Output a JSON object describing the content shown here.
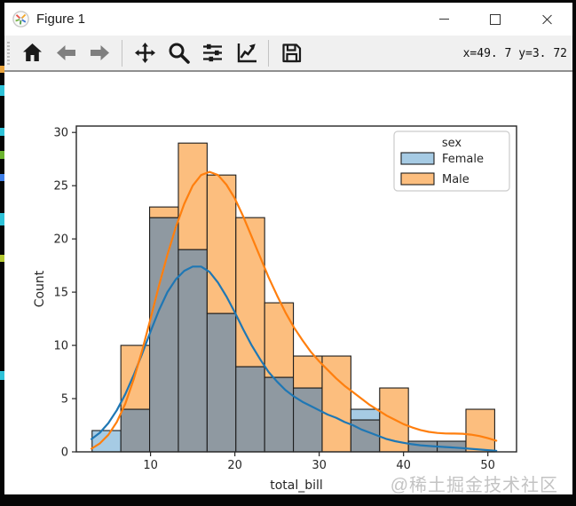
{
  "window": {
    "title": "Figure 1",
    "controls": [
      {
        "name": "minimize"
      },
      {
        "name": "maximize"
      },
      {
        "name": "close"
      }
    ]
  },
  "toolbar": {
    "groups": [
      [
        "home",
        "back",
        "forward"
      ],
      [
        "pan",
        "zoom",
        "configure-subplots",
        "edit-parameters"
      ],
      [
        "save"
      ]
    ],
    "coordinates": "x=49. 7 y=3. 72"
  },
  "chart_data": {
    "type": "histogram_kde",
    "title": "",
    "xlabel": "total_bill",
    "ylabel": "Count",
    "xlim": [
      1.2,
      53.4
    ],
    "ylim": [
      0,
      30.6
    ],
    "x_ticks": [
      10,
      20,
      30,
      40,
      50
    ],
    "y_ticks": [
      0,
      5,
      10,
      15,
      20,
      25,
      30
    ],
    "grid": false,
    "legend": {
      "title": "sex",
      "position": "upper right"
    },
    "bin_edges": [
      3.07,
      6.48,
      9.89,
      13.3,
      16.71,
      20.12,
      23.53,
      26.94,
      30.35,
      33.76,
      37.17,
      40.58,
      43.99,
      47.4,
      50.81
    ],
    "overlap_color": "#8f99a1",
    "edge_color": "#1c1c1c",
    "series": [
      {
        "name": "Female",
        "bar_color": "#a6cbe4",
        "line_color": "#1f77b4",
        "counts": [
          2,
          4,
          22,
          19,
          13,
          8,
          7,
          6,
          0,
          4,
          0,
          1,
          1,
          0
        ],
        "kde_x": [
          3,
          4,
          5,
          6,
          7,
          8,
          9,
          10,
          11,
          12,
          13,
          14,
          15,
          16,
          17,
          18,
          19,
          20,
          21,
          22,
          23,
          24,
          25,
          26,
          27,
          28,
          29,
          30,
          31,
          32,
          33,
          34,
          35,
          36,
          37,
          38,
          39,
          40,
          41,
          42,
          43,
          44,
          45,
          46,
          47,
          48,
          49,
          50,
          51
        ],
        "kde_y": [
          1.2,
          1.8,
          2.7,
          3.9,
          5.4,
          7.2,
          9.2,
          11.3,
          13.3,
          15.0,
          16.2,
          17.0,
          17.4,
          17.4,
          16.9,
          15.9,
          14.6,
          13.1,
          11.5,
          10.0,
          8.7,
          7.5,
          6.6,
          5.8,
          5.2,
          4.7,
          4.3,
          3.9,
          3.5,
          3.2,
          2.8,
          2.5,
          2.1,
          1.8,
          1.5,
          1.2,
          1.0,
          0.85,
          0.72,
          0.62,
          0.55,
          0.5,
          0.45,
          0.4,
          0.35,
          0.28,
          0.22,
          0.16,
          0.1
        ]
      },
      {
        "name": "Male",
        "bar_color": "#fcbe7e",
        "line_color": "#ff7f0e",
        "counts": [
          0,
          10,
          23,
          29,
          26,
          22,
          14,
          9,
          9,
          3,
          6,
          1,
          1,
          4
        ],
        "kde_x": [
          3,
          4,
          5,
          6,
          7,
          8,
          9,
          10,
          11,
          12,
          13,
          14,
          15,
          16,
          17,
          18,
          19,
          20,
          21,
          22,
          23,
          24,
          25,
          26,
          27,
          28,
          29,
          30,
          31,
          32,
          33,
          34,
          35,
          36,
          37,
          38,
          39,
          40,
          41,
          42,
          43,
          44,
          45,
          46,
          47,
          48,
          49,
          50,
          51
        ],
        "kde_y": [
          0.3,
          0.8,
          1.6,
          2.8,
          4.5,
          6.8,
          9.5,
          12.5,
          15.6,
          18.5,
          21.1,
          23.3,
          25.0,
          26.0,
          26.3,
          26.0,
          25.1,
          23.8,
          22.1,
          20.2,
          18.3,
          16.4,
          14.7,
          13.1,
          11.7,
          10.5,
          9.4,
          8.5,
          7.7,
          6.9,
          6.2,
          5.6,
          5.0,
          4.4,
          3.9,
          3.4,
          3.0,
          2.6,
          2.3,
          2.05,
          1.88,
          1.78,
          1.73,
          1.72,
          1.7,
          1.62,
          1.48,
          1.28,
          1.05
        ]
      }
    ]
  },
  "watermark": {
    "text": "@稀土掘金技术社区"
  }
}
